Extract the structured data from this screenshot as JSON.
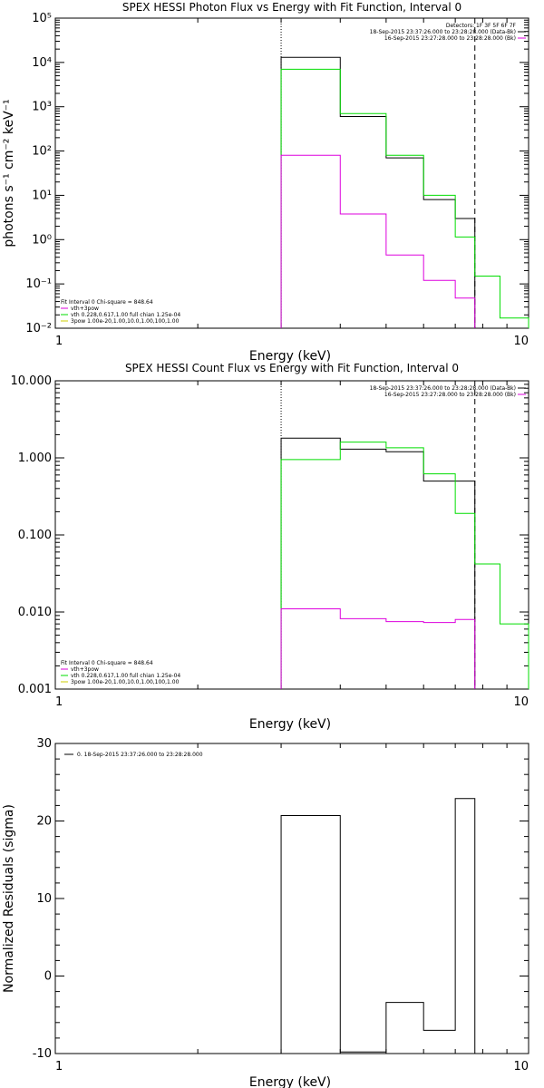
{
  "chart_data": [
    {
      "type": "line",
      "title": "SPEX HESSI Photon Flux vs Energy with Fit Function, Interval 0",
      "xlabel": "Energy (keV)",
      "ylabel": "photons s⁻¹ cm⁻² keV⁻¹",
      "xscale": "log",
      "yscale": "log",
      "xlim": [
        1,
        10
      ],
      "ylim": [
        0.01,
        100000
      ],
      "x_ticks": [
        1,
        10
      ],
      "x_tick_labels": [
        "1",
        "10"
      ],
      "y_ticks": [
        0.01,
        0.1,
        1,
        10,
        100,
        1000,
        10000,
        100000
      ],
      "y_tick_labels": [
        "10⁻²",
        "10⁻¹",
        "10⁰",
        "10¹",
        "10²",
        "10³",
        "10⁴",
        "10⁵"
      ],
      "vlines": [
        {
          "x": 3.0,
          "style": "dotted"
        },
        {
          "x": 7.7,
          "style": "dashed"
        }
      ],
      "legend_top": [
        "Detectors: 1F 3F 5F 6F 7F",
        "18-Sep-2015 23:37:26.000 to 23:28:28.000 (Data-Bk)",
        "16-Sep-2015 23:27:28.000 to 23:28:28.000 (Bk)"
      ],
      "legend_bottom": [
        "Fit Interval 0   Chi-square = 848.64",
        "vth+3pow",
        "vth 0.228,0.617,1.00  full chian 1.25e-04",
        "3pow 1.00e-20,1.00,10.0,1.00,100,1.00"
      ],
      "series": [
        {
          "color": "#000000",
          "bin_edges": [
            3.0,
            4.0,
            5.0,
            6.0,
            7.0,
            7.7
          ],
          "values": [
            13000,
            600,
            70,
            8,
            3
          ]
        },
        {
          "color": "#00dd00",
          "bin_edges": [
            3.0,
            4.0,
            5.0,
            6.0,
            7.0,
            7.7,
            8.7,
            10.0
          ],
          "values": [
            7000,
            700,
            80,
            10,
            1.15,
            0.15,
            0.017
          ]
        },
        {
          "color": "#dd00dd",
          "bin_edges": [
            3.0,
            4.0,
            5.0,
            6.0,
            7.0,
            7.7
          ],
          "values": [
            80,
            3.8,
            0.45,
            0.12,
            0.048
          ]
        }
      ]
    },
    {
      "type": "line",
      "title": "SPEX HESSI Count Flux vs Energy with Fit Function, Interval 0",
      "xlabel": "Energy (keV)",
      "ylabel": "",
      "xscale": "log",
      "yscale": "log",
      "xlim": [
        1,
        10
      ],
      "ylim": [
        0.001,
        10
      ],
      "x_ticks": [
        1,
        10
      ],
      "x_tick_labels": [
        "1",
        "10"
      ],
      "y_ticks": [
        0.001,
        0.01,
        0.1,
        1,
        10
      ],
      "y_tick_labels": [
        "0.001",
        "0.010",
        "0.100",
        "1.000",
        "10.000"
      ],
      "vlines": [
        {
          "x": 3.0,
          "style": "dotted"
        },
        {
          "x": 7.7,
          "style": "dashed"
        }
      ],
      "legend_top": [
        "18-Sep-2015 23:37:26.000 to 23:28:28.000 (Data-Bk)",
        "16-Sep-2015 23:27:28.000 to 23:28:28.000 (Bk)"
      ],
      "legend_bottom": [
        "Fit Interval 0   Chi-square = 848.64",
        "vth+3pow",
        "vth 0.228,0.617,1.00  full chian 1.25e-04",
        "3pow 1.00e-20,1.00,10.0,1.00,100,1.00"
      ],
      "series": [
        {
          "color": "#000000",
          "bin_edges": [
            3.0,
            4.0,
            5.0,
            6.0,
            7.0,
            7.7
          ],
          "values": [
            1.8,
            1.3,
            1.2,
            0.5,
            0.5
          ]
        },
        {
          "color": "#00dd00",
          "bin_edges": [
            3.0,
            4.0,
            5.0,
            6.0,
            7.0,
            7.7,
            8.7,
            10.0
          ],
          "values": [
            0.95,
            1.6,
            1.35,
            0.62,
            0.19,
            0.042,
            0.007
          ]
        },
        {
          "color": "#dd00dd",
          "bin_edges": [
            3.0,
            4.0,
            5.0,
            6.0,
            7.0,
            7.7
          ],
          "values": [
            0.011,
            0.0082,
            0.0075,
            0.0073,
            0.008
          ]
        }
      ]
    },
    {
      "type": "line",
      "title": "",
      "xlabel": "Energy (keV)",
      "ylabel": "Normalized Residuals (sigma)",
      "xscale": "log",
      "yscale": "linear",
      "xlim": [
        1,
        10
      ],
      "ylim": [
        -10,
        30
      ],
      "x_ticks": [
        1,
        10
      ],
      "x_tick_labels": [
        "1",
        "10"
      ],
      "y_ticks": [
        -10,
        0,
        10,
        20,
        30
      ],
      "y_tick_labels": [
        "-10",
        "0",
        "10",
        "20",
        "30"
      ],
      "vlines": [],
      "legend_top": [
        "0. 18-Sep-2015 23:37:26.000 to 23:28:28.000"
      ],
      "legend_bottom": [],
      "series": [
        {
          "color": "#000000",
          "bin_edges": [
            3.0,
            4.0,
            5.0,
            6.0,
            7.0,
            7.7
          ],
          "values": [
            20.7,
            -9.8,
            -3.4,
            -7.0,
            22.9
          ],
          "baseline": -10
        }
      ]
    }
  ]
}
